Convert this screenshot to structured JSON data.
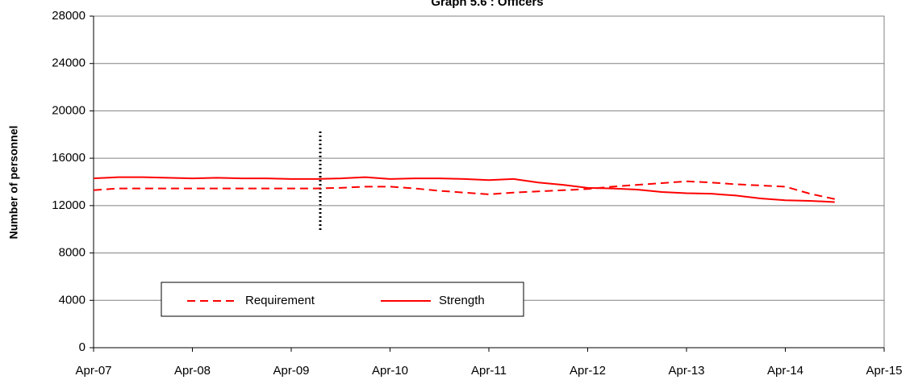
{
  "chart_data": {
    "type": "line",
    "title": "Graph 5.6 : Officers",
    "y_label": "Number of personnel",
    "categories": [
      "Apr-07",
      null,
      null,
      null,
      "Apr-08",
      null,
      null,
      null,
      "Apr-09",
      null,
      null,
      null,
      "Apr-10",
      null,
      null,
      null,
      "Apr-11",
      null,
      null,
      null,
      "Apr-12",
      null,
      null,
      null,
      "Apr-13",
      null,
      null,
      null,
      "Apr-14",
      null,
      null,
      null,
      "Apr-15"
    ],
    "series": [
      {
        "name": "Requirement",
        "color": "#ff0000",
        "style": "dashed",
        "values": [
          13300,
          13450,
          13450,
          13450,
          13450,
          13450,
          13450,
          13450,
          13450,
          13450,
          13500,
          13600,
          13600,
          13450,
          13250,
          13100,
          12950,
          13100,
          13200,
          13300,
          13400,
          13600,
          13750,
          13900,
          14050,
          13950,
          13800,
          13700,
          13600,
          13000,
          12550,
          null,
          null
        ]
      },
      {
        "name": "Strength",
        "color": "#ff0000",
        "style": "solid",
        "values": [
          14300,
          14400,
          14400,
          14350,
          14300,
          14350,
          14300,
          14300,
          14250,
          14250,
          14300,
          14400,
          14250,
          14300,
          14300,
          14250,
          14150,
          14250,
          13950,
          13750,
          13500,
          13450,
          13350,
          13150,
          13050,
          13000,
          12850,
          12600,
          12450,
          12400,
          12300,
          null,
          null
        ]
      }
    ],
    "ylim": [
      0,
      28000
    ],
    "yticks": [
      0,
      4000,
      8000,
      12000,
      16000,
      20000,
      24000,
      28000
    ],
    "grid": true,
    "legend": "bottom-left"
  }
}
